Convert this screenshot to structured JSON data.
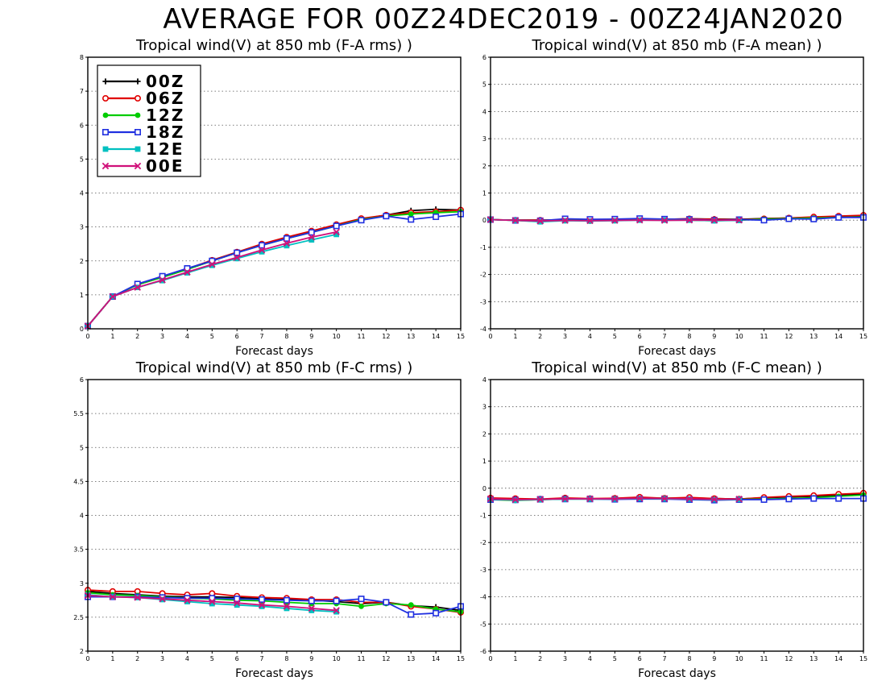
{
  "title": "AVERAGE FOR 00Z24DEC2019 - 00Z24JAN2020",
  "colors": {
    "00Z": "#000000",
    "06Z": "#e00000",
    "12Z": "#00cc00",
    "18Z": "#2030e0",
    "12E": "#00c0c0",
    "00E": "#d0107a"
  },
  "legend": [
    {
      "label": "00Z",
      "marker": "plus"
    },
    {
      "label": "06Z",
      "marker": "circle"
    },
    {
      "label": "12Z",
      "marker": "dot"
    },
    {
      "label": "18Z",
      "marker": "square"
    },
    {
      "label": "12E",
      "marker": "filled-square"
    },
    {
      "label": "00E",
      "marker": "x"
    }
  ],
  "chart_data": [
    {
      "type": "line",
      "title": "Tropical wind(V) at 850 mb (F-A rms) )",
      "xlabel": "Forecast days",
      "xlim": [
        0,
        15
      ],
      "ylim": [
        0,
        8
      ],
      "yticks": [
        0,
        1,
        2,
        3,
        4,
        5,
        6,
        7,
        8
      ],
      "legend": "top-left",
      "grid": true,
      "series": [
        {
          "name": "00Z",
          "x": [
            0,
            1,
            2,
            3,
            4,
            5,
            6,
            7,
            8,
            9,
            10,
            11,
            12,
            13,
            14,
            15
          ],
          "values": [
            0.08,
            0.95,
            1.3,
            1.52,
            1.75,
            2.0,
            2.25,
            2.48,
            2.68,
            2.86,
            3.05,
            3.23,
            3.35,
            3.48,
            3.52,
            3.5
          ]
        },
        {
          "name": "06Z",
          "x": [
            0,
            1,
            2,
            3,
            4,
            5,
            6,
            7,
            8,
            9,
            10,
            11,
            12,
            13,
            14,
            15
          ],
          "values": [
            0.08,
            0.95,
            1.3,
            1.53,
            1.77,
            2.02,
            2.26,
            2.5,
            2.7,
            2.88,
            3.07,
            3.25,
            3.35,
            3.42,
            3.45,
            3.5
          ]
        },
        {
          "name": "12Z",
          "x": [
            0,
            1,
            2,
            3,
            4,
            5,
            6,
            7,
            8,
            9,
            10,
            11,
            12,
            13,
            14,
            15
          ],
          "values": [
            0.08,
            0.95,
            1.3,
            1.52,
            1.75,
            2.0,
            2.24,
            2.46,
            2.66,
            2.84,
            3.03,
            3.22,
            3.32,
            3.38,
            3.42,
            3.45
          ]
        },
        {
          "name": "18Z",
          "x": [
            0,
            1,
            2,
            3,
            4,
            5,
            6,
            7,
            8,
            9,
            10,
            11,
            12,
            13,
            14,
            15
          ],
          "values": [
            0.08,
            0.95,
            1.32,
            1.55,
            1.78,
            2.0,
            2.24,
            2.46,
            2.66,
            2.84,
            3.03,
            3.2,
            3.32,
            3.22,
            3.3,
            3.38
          ]
        },
        {
          "name": "12E",
          "x": [
            0,
            1,
            2,
            3,
            4,
            5,
            6,
            7,
            8,
            9,
            10
          ],
          "values": [
            0.08,
            0.95,
            1.22,
            1.42,
            1.65,
            1.87,
            2.07,
            2.27,
            2.45,
            2.62,
            2.78
          ]
        },
        {
          "name": "00E",
          "x": [
            0,
            1,
            2,
            3,
            4,
            5,
            6,
            7,
            8,
            9,
            10
          ],
          "values": [
            0.08,
            0.95,
            1.22,
            1.44,
            1.67,
            1.9,
            2.1,
            2.32,
            2.52,
            2.7,
            2.85
          ]
        }
      ]
    },
    {
      "type": "line",
      "title": "Tropical wind(V) at 850 mb (F-A mean) )",
      "xlabel": "Forecast days",
      "xlim": [
        0,
        15
      ],
      "ylim": [
        -4,
        6
      ],
      "yticks": [
        -4,
        -3,
        -2,
        -1,
        0,
        1,
        2,
        3,
        4,
        5,
        6
      ],
      "legend": "none",
      "grid": true,
      "series": [
        {
          "name": "00Z",
          "x": [
            0,
            1,
            2,
            3,
            4,
            5,
            6,
            7,
            8,
            9,
            10,
            11,
            12,
            13,
            14,
            15
          ],
          "values": [
            0.02,
            0.0,
            0.0,
            0.01,
            0.0,
            0.02,
            0.04,
            0.03,
            0.05,
            0.04,
            0.03,
            0.06,
            0.08,
            0.1,
            0.12,
            0.15
          ]
        },
        {
          "name": "06Z",
          "x": [
            0,
            1,
            2,
            3,
            4,
            5,
            6,
            7,
            8,
            9,
            10,
            11,
            12,
            13,
            14,
            15
          ],
          "values": [
            0.02,
            0.0,
            0.0,
            0.0,
            -0.02,
            0.0,
            0.02,
            0.03,
            0.05,
            0.03,
            0.02,
            0.05,
            0.08,
            0.12,
            0.15,
            0.18
          ]
        },
        {
          "name": "12Z",
          "x": [
            0,
            1,
            2,
            3,
            4,
            5,
            6,
            7,
            8,
            9,
            10,
            11,
            12,
            13,
            14,
            15
          ],
          "values": [
            0.02,
            -0.01,
            -0.05,
            0.0,
            0.0,
            0.0,
            0.02,
            0.02,
            0.0,
            -0.02,
            0.0,
            0.04,
            0.06,
            0.08,
            0.1,
            0.12
          ]
        },
        {
          "name": "18Z",
          "x": [
            0,
            1,
            2,
            3,
            4,
            5,
            6,
            7,
            8,
            9,
            10,
            11,
            12,
            13,
            14,
            15
          ],
          "values": [
            0.02,
            -0.01,
            -0.02,
            0.05,
            0.03,
            0.04,
            0.06,
            0.04,
            0.03,
            0.0,
            0.02,
            0.0,
            0.05,
            0.04,
            0.1,
            0.1
          ]
        },
        {
          "name": "12E",
          "x": [
            0,
            1,
            2,
            3,
            4,
            5,
            6,
            7,
            8,
            9,
            10
          ],
          "values": [
            0.02,
            -0.01,
            -0.06,
            -0.02,
            -0.03,
            -0.02,
            0.0,
            0.0,
            0.0,
            -0.02,
            -0.01
          ]
        },
        {
          "name": "00E",
          "x": [
            0,
            1,
            2,
            3,
            4,
            5,
            6,
            7,
            8,
            9,
            10
          ],
          "values": [
            0.02,
            -0.01,
            -0.03,
            -0.01,
            -0.02,
            -0.01,
            0.0,
            -0.01,
            0.0,
            0.0,
            0.0
          ]
        }
      ]
    },
    {
      "type": "line",
      "title": "Tropical wind(V) at 850 mb (F-C rms) )",
      "xlabel": "Forecast days",
      "xlim": [
        0,
        15
      ],
      "ylim": [
        2,
        6
      ],
      "yticks": [
        2,
        2.5,
        3,
        3.5,
        4,
        4.5,
        5,
        5.5,
        6
      ],
      "legend": "none",
      "grid": true,
      "series": [
        {
          "name": "00Z",
          "x": [
            0,
            1,
            2,
            3,
            4,
            5,
            6,
            7,
            8,
            9,
            10,
            11,
            12,
            13,
            14,
            15
          ],
          "values": [
            2.88,
            2.85,
            2.83,
            2.81,
            2.8,
            2.8,
            2.79,
            2.77,
            2.76,
            2.75,
            2.73,
            2.7,
            2.72,
            2.67,
            2.65,
            2.6
          ]
        },
        {
          "name": "06Z",
          "x": [
            0,
            1,
            2,
            3,
            4,
            5,
            6,
            7,
            8,
            9,
            10,
            11,
            12,
            13,
            14,
            15
          ],
          "values": [
            2.9,
            2.88,
            2.88,
            2.85,
            2.83,
            2.85,
            2.81,
            2.79,
            2.78,
            2.76,
            2.76,
            2.72,
            2.72,
            2.66,
            2.62,
            2.57
          ]
        },
        {
          "name": "12Z",
          "x": [
            0,
            1,
            2,
            3,
            4,
            5,
            6,
            7,
            8,
            9,
            10,
            11,
            12,
            13,
            14,
            15
          ],
          "values": [
            2.86,
            2.83,
            2.82,
            2.8,
            2.78,
            2.77,
            2.75,
            2.74,
            2.72,
            2.7,
            2.7,
            2.66,
            2.7,
            2.68,
            2.62,
            2.58
          ]
        },
        {
          "name": "18Z",
          "x": [
            0,
            1,
            2,
            3,
            4,
            5,
            6,
            7,
            8,
            9,
            10,
            11,
            12,
            13,
            14,
            15
          ],
          "values": [
            2.8,
            2.8,
            2.8,
            2.79,
            2.78,
            2.78,
            2.77,
            2.76,
            2.75,
            2.74,
            2.74,
            2.77,
            2.72,
            2.54,
            2.56,
            2.66
          ]
        },
        {
          "name": "12E",
          "x": [
            0,
            1,
            2,
            3,
            4,
            5,
            6,
            7,
            8,
            9,
            10
          ],
          "values": [
            2.83,
            2.8,
            2.79,
            2.76,
            2.73,
            2.7,
            2.68,
            2.66,
            2.63,
            2.6,
            2.58
          ]
        },
        {
          "name": "00E",
          "x": [
            0,
            1,
            2,
            3,
            4,
            5,
            6,
            7,
            8,
            9,
            10
          ],
          "values": [
            2.82,
            2.8,
            2.79,
            2.77,
            2.75,
            2.73,
            2.71,
            2.68,
            2.66,
            2.63,
            2.6
          ]
        }
      ]
    },
    {
      "type": "line",
      "title": "Tropical wind(V) at 850 mb (F-C mean) )",
      "xlabel": "Forecast days",
      "xlim": [
        0,
        15
      ],
      "ylim": [
        -6,
        4
      ],
      "yticks": [
        -6,
        -5,
        -4,
        -3,
        -2,
        -1,
        0,
        1,
        2,
        3,
        4
      ],
      "legend": "none",
      "grid": true,
      "series": [
        {
          "name": "00Z",
          "x": [
            0,
            1,
            2,
            3,
            4,
            5,
            6,
            7,
            8,
            9,
            10,
            11,
            12,
            13,
            14,
            15
          ],
          "values": [
            -0.38,
            -0.4,
            -0.42,
            -0.38,
            -0.4,
            -0.38,
            -0.36,
            -0.37,
            -0.36,
            -0.38,
            -0.4,
            -0.35,
            -0.32,
            -0.3,
            -0.26,
            -0.22
          ]
        },
        {
          "name": "06Z",
          "x": [
            0,
            1,
            2,
            3,
            4,
            5,
            6,
            7,
            8,
            9,
            10,
            11,
            12,
            13,
            14,
            15
          ],
          "values": [
            -0.36,
            -0.38,
            -0.4,
            -0.36,
            -0.38,
            -0.37,
            -0.33,
            -0.37,
            -0.34,
            -0.38,
            -0.4,
            -0.34,
            -0.3,
            -0.27,
            -0.22,
            -0.18
          ]
        },
        {
          "name": "12Z",
          "x": [
            0,
            1,
            2,
            3,
            4,
            5,
            6,
            7,
            8,
            9,
            10,
            11,
            12,
            13,
            14,
            15
          ],
          "values": [
            -0.42,
            -0.45,
            -0.42,
            -0.4,
            -0.4,
            -0.4,
            -0.38,
            -0.38,
            -0.4,
            -0.42,
            -0.41,
            -0.4,
            -0.38,
            -0.35,
            -0.3,
            -0.25
          ]
        },
        {
          "name": "18Z",
          "x": [
            0,
            1,
            2,
            3,
            4,
            5,
            6,
            7,
            8,
            9,
            10,
            11,
            12,
            13,
            14,
            15
          ],
          "values": [
            -0.42,
            -0.43,
            -0.41,
            -0.4,
            -0.4,
            -0.41,
            -0.4,
            -0.4,
            -0.42,
            -0.44,
            -0.42,
            -0.42,
            -0.4,
            -0.38,
            -0.38,
            -0.38
          ]
        },
        {
          "name": "12E",
          "x": [
            0,
            1,
            2,
            3,
            4,
            5,
            6,
            7,
            8,
            9,
            10
          ],
          "values": [
            -0.4,
            -0.44,
            -0.42,
            -0.4,
            -0.4,
            -0.4,
            -0.38,
            -0.39,
            -0.4,
            -0.42,
            -0.41
          ]
        },
        {
          "name": "00E",
          "x": [
            0,
            1,
            2,
            3,
            4,
            5,
            6,
            7,
            8,
            9,
            10
          ],
          "values": [
            -0.39,
            -0.42,
            -0.41,
            -0.39,
            -0.39,
            -0.39,
            -0.37,
            -0.38,
            -0.39,
            -0.41,
            -0.4
          ]
        }
      ]
    }
  ]
}
